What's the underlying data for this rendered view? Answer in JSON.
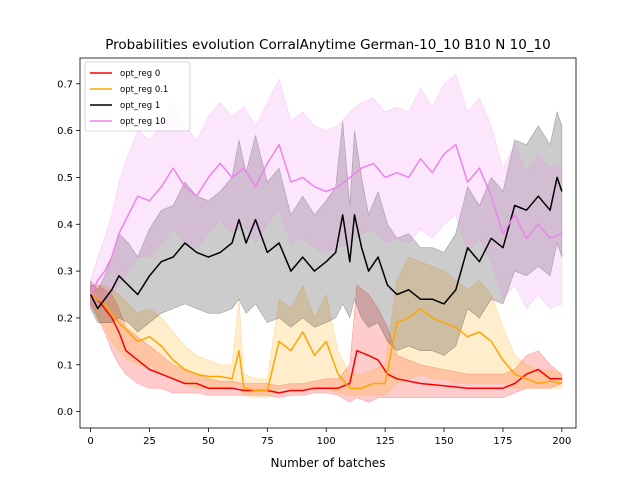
{
  "chart_data": {
    "type": "line",
    "title": "Probabilities evolution CorralAnytime German-10_10 B10 N 10_10",
    "xlabel": "Number of batches",
    "ylabel": "",
    "xlim": [
      -4.5,
      206
    ],
    "ylim": [
      -0.035,
      0.755
    ],
    "xticks": [
      0,
      25,
      50,
      75,
      100,
      125,
      150,
      175,
      200
    ],
    "yticks": [
      0.0,
      0.1,
      0.2,
      0.3,
      0.4,
      0.5,
      0.6,
      0.7
    ],
    "ytick_labels": [
      "0.0",
      "0.1",
      "0.2",
      "0.3",
      "0.4",
      "0.5",
      "0.6",
      "0.7"
    ],
    "grid": false,
    "legend_position": "top-left",
    "series": [
      {
        "name": "opt_reg 0",
        "color": "#ff0000",
        "x": [
          0,
          3,
          6,
          9,
          12,
          15,
          20,
          25,
          30,
          35,
          40,
          45,
          50,
          55,
          60,
          65,
          70,
          75,
          80,
          85,
          90,
          95,
          100,
          105,
          110,
          113,
          118,
          122,
          126,
          130,
          140,
          150,
          160,
          170,
          175,
          180,
          185,
          190,
          195,
          200
        ],
        "y": [
          0.25,
          0.24,
          0.22,
          0.2,
          0.17,
          0.13,
          0.11,
          0.09,
          0.08,
          0.07,
          0.06,
          0.06,
          0.05,
          0.05,
          0.05,
          0.045,
          0.045,
          0.045,
          0.04,
          0.045,
          0.045,
          0.05,
          0.05,
          0.05,
          0.06,
          0.13,
          0.12,
          0.11,
          0.08,
          0.07,
          0.06,
          0.055,
          0.05,
          0.05,
          0.05,
          0.06,
          0.08,
          0.09,
          0.07,
          0.07
        ],
        "lower": [
          0.23,
          0.2,
          0.17,
          0.13,
          0.1,
          0.08,
          0.06,
          0.05,
          0.05,
          0.04,
          0.04,
          0.04,
          0.035,
          0.035,
          0.035,
          0.035,
          0.035,
          0.035,
          0.03,
          0.035,
          0.035,
          0.04,
          0.04,
          0.035,
          0.02,
          0.03,
          0.02,
          0.03,
          0.03,
          0.03,
          0.03,
          0.03,
          0.03,
          0.03,
          0.03,
          0.04,
          0.05,
          0.05,
          0.05,
          0.06
        ],
        "upper": [
          0.27,
          0.27,
          0.26,
          0.25,
          0.22,
          0.18,
          0.16,
          0.14,
          0.12,
          0.1,
          0.09,
          0.08,
          0.07,
          0.065,
          0.065,
          0.06,
          0.06,
          0.06,
          0.055,
          0.06,
          0.06,
          0.065,
          0.07,
          0.07,
          0.1,
          0.27,
          0.25,
          0.22,
          0.18,
          0.12,
          0.1,
          0.09,
          0.08,
          0.08,
          0.08,
          0.09,
          0.12,
          0.13,
          0.1,
          0.08
        ]
      },
      {
        "name": "opt_reg 0.1",
        "color": "#ffa500",
        "x": [
          0,
          3,
          6,
          9,
          12,
          16,
          20,
          25,
          30,
          35,
          40,
          45,
          50,
          55,
          60,
          63,
          65,
          70,
          75,
          80,
          85,
          90,
          95,
          100,
          105,
          110,
          115,
          120,
          125,
          130,
          135,
          140,
          145,
          150,
          155,
          160,
          165,
          170,
          175,
          180,
          185,
          190,
          195,
          200
        ],
        "y": [
          0.25,
          0.24,
          0.23,
          0.21,
          0.19,
          0.17,
          0.15,
          0.16,
          0.14,
          0.11,
          0.09,
          0.08,
          0.075,
          0.075,
          0.07,
          0.13,
          0.05,
          0.045,
          0.045,
          0.15,
          0.13,
          0.17,
          0.12,
          0.15,
          0.08,
          0.05,
          0.05,
          0.06,
          0.06,
          0.19,
          0.2,
          0.22,
          0.2,
          0.19,
          0.18,
          0.16,
          0.17,
          0.15,
          0.11,
          0.08,
          0.07,
          0.06,
          0.065,
          0.06
        ],
        "lower": [
          0.23,
          0.2,
          0.18,
          0.15,
          0.13,
          0.11,
          0.1,
          0.1,
          0.08,
          0.07,
          0.06,
          0.05,
          0.05,
          0.05,
          0.05,
          0.06,
          0.035,
          0.03,
          0.03,
          0.05,
          0.05,
          0.05,
          0.05,
          0.05,
          0.04,
          0.035,
          0.035,
          0.035,
          0.035,
          0.06,
          0.07,
          0.08,
          0.07,
          0.07,
          0.06,
          0.06,
          0.06,
          0.06,
          0.06,
          0.05,
          0.05,
          0.05,
          0.05,
          0.05
        ],
        "upper": [
          0.27,
          0.27,
          0.27,
          0.26,
          0.25,
          0.23,
          0.21,
          0.22,
          0.2,
          0.17,
          0.14,
          0.12,
          0.11,
          0.1,
          0.1,
          0.24,
          0.08,
          0.07,
          0.07,
          0.24,
          0.22,
          0.27,
          0.2,
          0.25,
          0.13,
          0.08,
          0.08,
          0.09,
          0.1,
          0.28,
          0.33,
          0.32,
          0.31,
          0.3,
          0.28,
          0.26,
          0.28,
          0.25,
          0.18,
          0.12,
          0.1,
          0.09,
          0.09,
          0.08
        ]
      },
      {
        "name": "opt_reg 1",
        "color": "#000000",
        "x": [
          0,
          3,
          6,
          9,
          12,
          16,
          20,
          25,
          30,
          35,
          40,
          45,
          50,
          55,
          60,
          63,
          66,
          70,
          75,
          80,
          85,
          90,
          95,
          100,
          104,
          107,
          110,
          112,
          115,
          118,
          122,
          126,
          130,
          135,
          140,
          145,
          150,
          155,
          160,
          165,
          170,
          175,
          180,
          185,
          190,
          195,
          198,
          200
        ],
        "y": [
          0.25,
          0.22,
          0.24,
          0.26,
          0.29,
          0.27,
          0.25,
          0.29,
          0.32,
          0.33,
          0.36,
          0.34,
          0.33,
          0.34,
          0.36,
          0.41,
          0.36,
          0.41,
          0.34,
          0.36,
          0.3,
          0.33,
          0.3,
          0.32,
          0.34,
          0.42,
          0.32,
          0.42,
          0.35,
          0.3,
          0.33,
          0.27,
          0.25,
          0.26,
          0.24,
          0.24,
          0.23,
          0.26,
          0.35,
          0.32,
          0.37,
          0.35,
          0.44,
          0.43,
          0.46,
          0.43,
          0.5,
          0.47
        ],
        "lower": [
          0.22,
          0.19,
          0.19,
          0.19,
          0.2,
          0.19,
          0.17,
          0.19,
          0.21,
          0.22,
          0.23,
          0.22,
          0.21,
          0.21,
          0.22,
          0.24,
          0.21,
          0.23,
          0.19,
          0.2,
          0.18,
          0.2,
          0.18,
          0.19,
          0.2,
          0.23,
          0.2,
          0.24,
          0.2,
          0.18,
          0.19,
          0.15,
          0.13,
          0.14,
          0.13,
          0.13,
          0.12,
          0.14,
          0.22,
          0.2,
          0.24,
          0.23,
          0.3,
          0.29,
          0.31,
          0.29,
          0.36,
          0.33
        ],
        "upper": [
          0.28,
          0.26,
          0.29,
          0.33,
          0.38,
          0.36,
          0.33,
          0.39,
          0.43,
          0.44,
          0.49,
          0.46,
          0.45,
          0.47,
          0.5,
          0.58,
          0.51,
          0.59,
          0.49,
          0.52,
          0.42,
          0.46,
          0.42,
          0.45,
          0.48,
          0.62,
          0.44,
          0.6,
          0.5,
          0.42,
          0.47,
          0.4,
          0.37,
          0.38,
          0.35,
          0.35,
          0.34,
          0.38,
          0.48,
          0.44,
          0.5,
          0.47,
          0.58,
          0.57,
          0.61,
          0.57,
          0.64,
          0.61
        ]
      },
      {
        "name": "opt_reg 10",
        "color": "#ee82ee",
        "x": [
          0,
          3,
          6,
          9,
          12,
          16,
          20,
          25,
          30,
          35,
          40,
          45,
          50,
          55,
          60,
          65,
          70,
          75,
          80,
          85,
          90,
          95,
          100,
          105,
          110,
          115,
          120,
          125,
          130,
          135,
          140,
          145,
          150,
          155,
          160,
          165,
          170,
          175,
          180,
          185,
          190,
          195,
          200
        ],
        "y": [
          0.25,
          0.28,
          0.3,
          0.33,
          0.38,
          0.42,
          0.46,
          0.45,
          0.48,
          0.52,
          0.48,
          0.46,
          0.5,
          0.53,
          0.5,
          0.52,
          0.48,
          0.53,
          0.57,
          0.49,
          0.5,
          0.48,
          0.47,
          0.48,
          0.5,
          0.52,
          0.53,
          0.5,
          0.51,
          0.5,
          0.54,
          0.51,
          0.55,
          0.57,
          0.49,
          0.52,
          0.46,
          0.38,
          0.42,
          0.37,
          0.4,
          0.37,
          0.38
        ],
        "lower": [
          0.22,
          0.23,
          0.23,
          0.25,
          0.27,
          0.3,
          0.33,
          0.33,
          0.36,
          0.39,
          0.36,
          0.35,
          0.38,
          0.41,
          0.38,
          0.4,
          0.36,
          0.4,
          0.43,
          0.36,
          0.37,
          0.35,
          0.34,
          0.35,
          0.36,
          0.38,
          0.39,
          0.36,
          0.37,
          0.36,
          0.39,
          0.37,
          0.4,
          0.42,
          0.34,
          0.37,
          0.32,
          0.24,
          0.27,
          0.22,
          0.25,
          0.22,
          0.23
        ],
        "upper": [
          0.28,
          0.33,
          0.37,
          0.42,
          0.49,
          0.55,
          0.6,
          0.58,
          0.61,
          0.66,
          0.61,
          0.58,
          0.63,
          0.66,
          0.63,
          0.65,
          0.61,
          0.66,
          0.71,
          0.62,
          0.64,
          0.61,
          0.6,
          0.61,
          0.64,
          0.66,
          0.67,
          0.64,
          0.65,
          0.64,
          0.69,
          0.65,
          0.7,
          0.72,
          0.64,
          0.67,
          0.61,
          0.52,
          0.57,
          0.51,
          0.55,
          0.52,
          0.53
        ]
      }
    ]
  }
}
